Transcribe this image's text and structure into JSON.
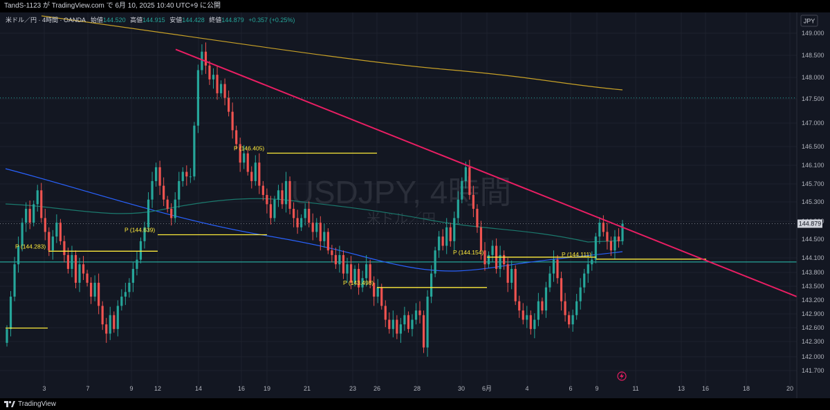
{
  "header": {
    "publish_line": "TandS-1123 が TradingView.com で 6月 10, 2025 10:40 UTC+9 に公開"
  },
  "legend": {
    "symbol": "米ドル／円 · 4時間 · OANDA",
    "open_label": "始値",
    "open": "144.520",
    "high_label": "高値",
    "high": "144.915",
    "low_label": "安値",
    "low": "144.428",
    "close_label": "終値",
    "close": "144.879",
    "change": "+0.357 (+0.25%)"
  },
  "watermark": {
    "main": "USDJPY, 4時間",
    "sub": "米ドル／円"
  },
  "currency_button": "JPY",
  "last_price_tag": "144.879",
  "footer": {
    "brand": "TradingView"
  },
  "colors": {
    "background": "#131722",
    "up": "#26a69a",
    "down": "#ef5350",
    "trendline": "#e91e63",
    "pivot": "#ffeb3b",
    "ma_orange": "#c9a227",
    "ma_blue": "#2962ff",
    "ma_green": "#1b7a6e",
    "support": "#26a69a"
  },
  "chart_data": {
    "type": "candlestick",
    "y_axis": {
      "range": [
        141.5,
        149.3
      ],
      "ticks": [
        "149.000",
        "148.500",
        "148.000",
        "147.500",
        "147.000",
        "146.500",
        "146.100",
        "145.700",
        "145.300",
        "144.900",
        "144.500",
        "144.100",
        "143.800",
        "143.500",
        "143.200",
        "142.900",
        "142.600",
        "142.300",
        "142.000",
        "141.700"
      ]
    },
    "x_axis": {
      "labels": [
        "3",
        "7",
        "9",
        "12",
        "14",
        "16",
        "19",
        "21",
        "23",
        "26",
        "28",
        "30",
        "6月",
        "4",
        "6",
        "9",
        "11",
        "13",
        "16",
        "18",
        "20"
      ]
    },
    "pivot_labels": [
      {
        "text": "P (144.283)",
        "value": 144.283
      },
      {
        "text": "P (144.639)",
        "value": 144.639
      },
      {
        "text": "P (146.405)",
        "value": 146.405
      },
      {
        "text": "P (143.498)",
        "value": 143.498
      },
      {
        "text": "P (144.154)",
        "value": 144.154
      },
      {
        "text": "P (144.111)",
        "value": 144.111
      }
    ],
    "pivot_unlabeled_levels": [
      142.62
    ],
    "horizontal_levels": [
      {
        "value": 144.05,
        "style": "solid"
      },
      {
        "value": 147.6,
        "style": "dotted"
      },
      {
        "value": 144.879,
        "style": "dotted"
      }
    ],
    "trendline": {
      "from": {
        "date": "May 13",
        "price": 148.65
      },
      "to": {
        "date": "Jun 20",
        "price": 143.3
      }
    },
    "series_close": [
      142.6,
      143.3,
      144.0,
      144.4,
      144.9,
      145.2,
      144.9,
      145.3,
      145.6,
      145.0,
      144.7,
      144.3,
      144.6,
      144.9,
      144.5,
      144.2,
      143.9,
      144.2,
      143.6,
      144.0,
      143.8,
      143.6,
      143.3,
      143.6,
      143.1,
      142.7,
      142.5,
      142.9,
      142.6,
      143.1,
      143.3,
      143.4,
      143.6,
      143.9,
      144.1,
      144.5,
      144.8,
      145.4,
      145.8,
      146.1,
      145.7,
      145.4,
      145.2,
      145.0,
      145.4,
      145.8,
      146.0,
      145.9,
      145.9,
      147.0,
      148.2,
      148.6,
      148.3,
      148.0,
      148.1,
      147.7,
      147.9,
      147.6,
      147.3,
      146.9,
      146.6,
      146.2,
      146.4,
      146.0,
      145.8,
      146.2,
      145.7,
      145.5,
      145.3,
      145.0,
      145.4,
      145.6,
      145.3,
      145.8,
      145.2,
      145.0,
      144.8,
      145.0,
      145.2,
      144.9,
      144.7,
      144.9,
      144.5,
      144.7,
      144.3,
      144.2,
      144.0,
      144.2,
      143.8,
      144.0,
      143.6,
      143.9,
      143.5,
      143.7,
      144.0,
      143.6,
      143.3,
      143.5,
      143.1,
      142.8,
      142.6,
      142.8,
      142.5,
      142.7,
      142.9,
      142.6,
      142.8,
      143.0,
      142.9,
      142.2,
      143.3,
      143.8,
      144.3,
      144.6,
      144.4,
      144.8,
      144.5,
      145.0,
      145.4,
      145.8,
      146.1,
      145.5,
      145.2,
      144.8,
      144.3,
      144.0,
      144.2,
      144.4,
      143.9,
      144.2,
      144.0,
      143.6,
      143.9,
      143.2,
      143.0,
      142.8,
      142.9,
      142.6,
      142.8,
      143.2,
      143.0,
      143.5,
      143.8,
      144.1,
      143.7,
      143.2,
      142.9,
      142.7,
      142.9,
      143.2,
      143.5,
      143.8,
      144.0,
      144.1,
      144.6,
      144.9,
      144.7,
      144.5,
      144.3,
      144.6,
      144.5,
      144.879
    ]
  }
}
